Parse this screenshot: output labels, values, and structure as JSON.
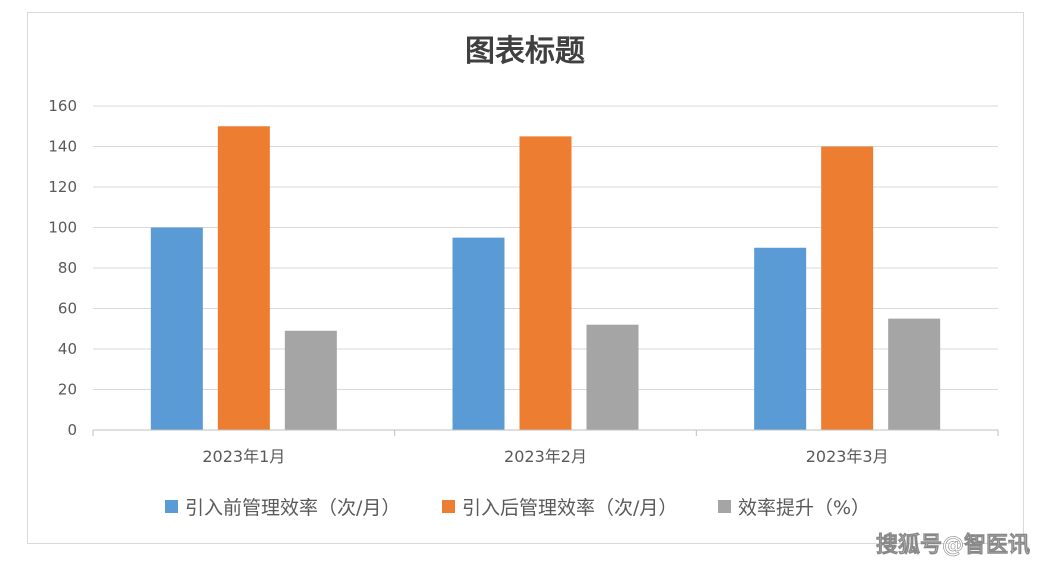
{
  "chart_data": {
    "type": "bar",
    "title": "图表标题",
    "xlabel": "",
    "ylabel": "",
    "categories": [
      "2023年1月",
      "2023年2月",
      "2023年3月"
    ],
    "series": [
      {
        "name": "引入前管理效率（次/月）",
        "color": "#5b9bd5",
        "values": [
          100,
          95,
          90
        ]
      },
      {
        "name": "引入后管理效率（次/月）",
        "color": "#ed7d31",
        "values": [
          150,
          145,
          140
        ]
      },
      {
        "name": "效率提升（%）",
        "color": "#a5a5a5",
        "values": [
          49,
          52,
          55
        ]
      }
    ],
    "ylim": [
      0,
      160
    ],
    "yticks": [
      0,
      20,
      40,
      60,
      80,
      100,
      120,
      140,
      160
    ],
    "grid": true,
    "legend_position": "bottom"
  },
  "watermark": "搜狐号@智医讯"
}
